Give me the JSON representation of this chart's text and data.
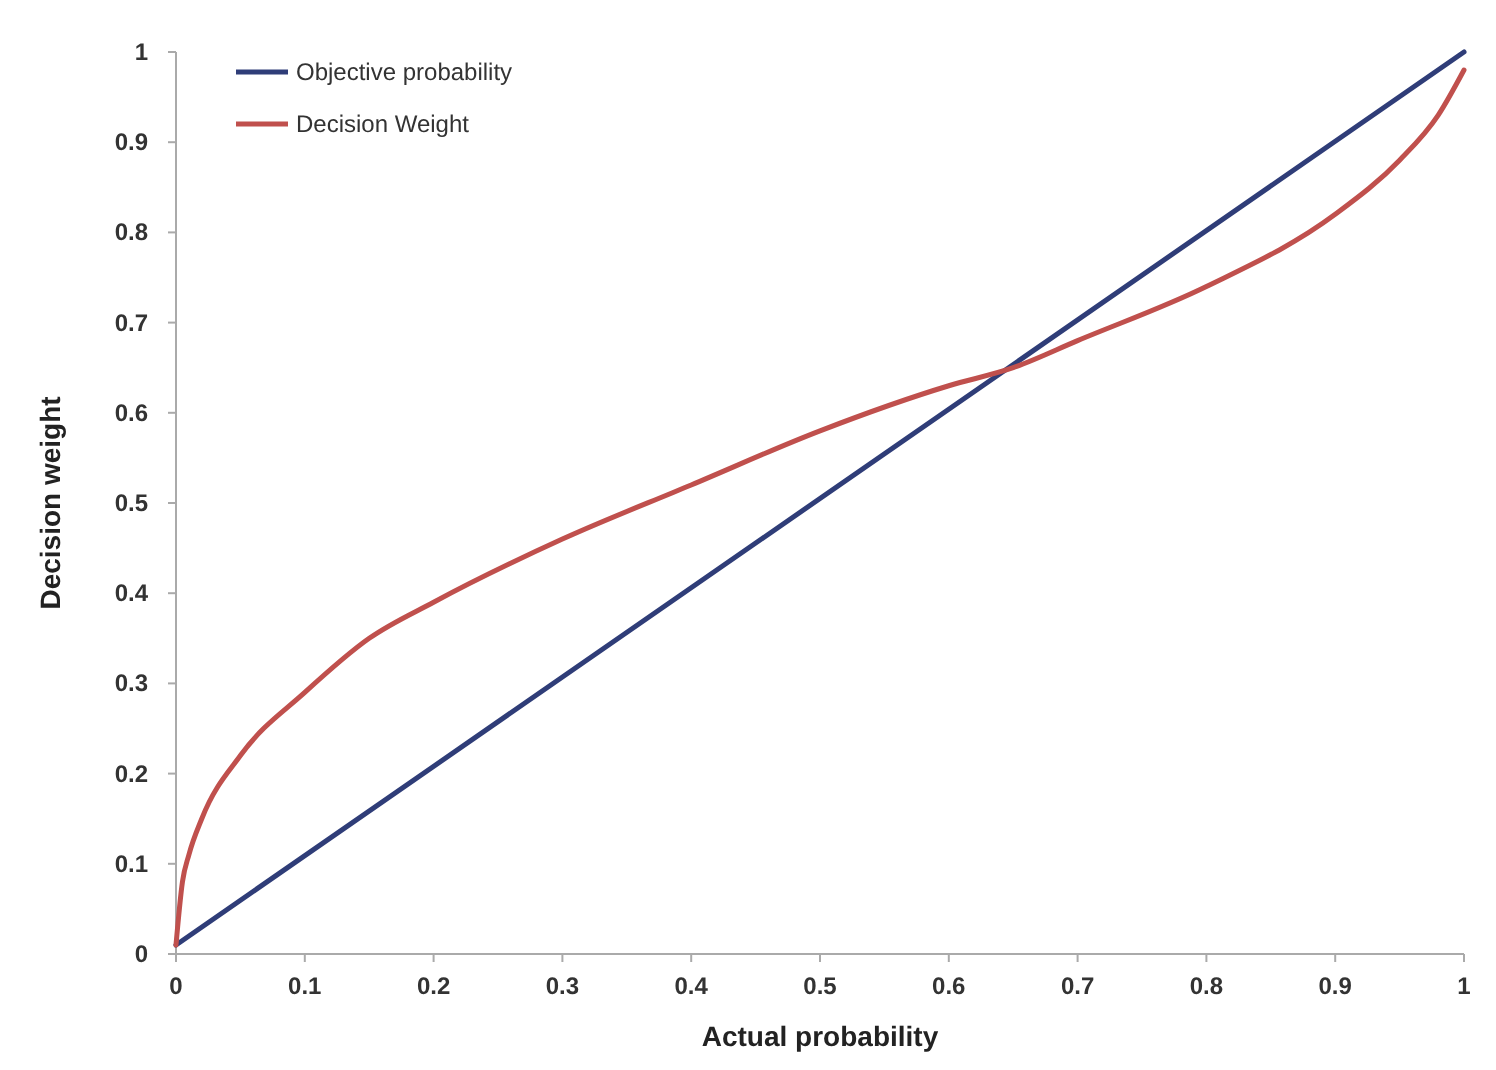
{
  "chart_data": {
    "type": "line",
    "xlabel": "Actual probability",
    "ylabel": "Decision weight",
    "xlim": [
      0,
      1
    ],
    "ylim": [
      0,
      1
    ],
    "xticks": [
      0,
      0.1,
      0.2,
      0.3,
      0.4,
      0.5,
      0.6,
      0.7,
      0.8,
      0.9,
      1
    ],
    "yticks": [
      0,
      0.1,
      0.2,
      0.3,
      0.4,
      0.5,
      0.6,
      0.7,
      0.8,
      0.9,
      1
    ],
    "grid": false,
    "legend": "top left",
    "marker": "none",
    "line_style": "solid",
    "series": [
      {
        "name": "Objective probability",
        "color": "#2f3d78",
        "x": [
          0,
          1
        ],
        "values": [
          0.01,
          1
        ]
      },
      {
        "name": "Decision Weight",
        "color": "#c0504d",
        "x": [
          0,
          0.005,
          0.01,
          0.02,
          0.05,
          0.1,
          0.15,
          0.2,
          0.3,
          0.4,
          0.5,
          0.6,
          0.65,
          0.7,
          0.8,
          0.9,
          0.95,
          0.98,
          1
        ],
        "values": [
          0.01,
          0.08,
          0.11,
          0.15,
          0.22,
          0.29,
          0.35,
          0.39,
          0.46,
          0.52,
          0.58,
          0.63,
          0.65,
          0.68,
          0.74,
          0.82,
          0.88,
          0.93,
          0.98
        ]
      }
    ]
  }
}
